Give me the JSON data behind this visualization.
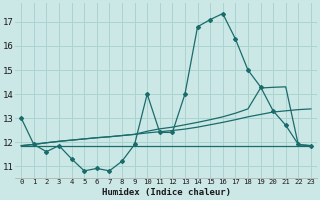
{
  "xlabel": "Humidex (Indice chaleur)",
  "ylabel": "",
  "background_color": "#cce8e6",
  "grid_color": "#aad4d0",
  "line_color": "#1a6b6b",
  "x_values": [
    0,
    1,
    2,
    3,
    4,
    5,
    6,
    7,
    8,
    9,
    10,
    11,
    12,
    13,
    14,
    15,
    16,
    17,
    18,
    19,
    20,
    21,
    22,
    23
  ],
  "series1_y": [
    13.0,
    11.9,
    11.6,
    11.85,
    11.3,
    10.8,
    10.9,
    10.8,
    11.2,
    11.9,
    14.0,
    12.4,
    12.4,
    14.0,
    16.8,
    17.1,
    17.35,
    16.3,
    15.0,
    14.3,
    13.3,
    12.7,
    11.9,
    11.85
  ],
  "series2_y": [
    11.85,
    11.85,
    11.85,
    11.85,
    11.85,
    11.85,
    11.85,
    11.85,
    11.85,
    11.85,
    11.85,
    11.85,
    11.85,
    11.85,
    11.85,
    11.85,
    11.85,
    11.85,
    11.85,
    11.85,
    11.85,
    11.85,
    11.85,
    11.85
  ],
  "series3_y": [
    11.85,
    11.9,
    11.97,
    12.03,
    12.08,
    12.13,
    12.18,
    12.22,
    12.27,
    12.32,
    12.38,
    12.43,
    12.48,
    12.54,
    12.62,
    12.72,
    12.82,
    12.93,
    13.05,
    13.15,
    13.25,
    13.3,
    13.35,
    13.38
  ],
  "series4_y": [
    11.85,
    11.9,
    11.97,
    12.03,
    12.08,
    12.13,
    12.18,
    12.22,
    12.27,
    12.32,
    12.45,
    12.55,
    12.62,
    12.72,
    12.82,
    12.93,
    13.05,
    13.2,
    13.38,
    14.25,
    14.28,
    14.3,
    11.88,
    11.85
  ],
  "ylim": [
    10.5,
    17.8
  ],
  "xlim": [
    -0.5,
    23.5
  ],
  "yticks": [
    11,
    12,
    13,
    14,
    15,
    16,
    17
  ],
  "xticks": [
    0,
    1,
    2,
    3,
    4,
    5,
    6,
    7,
    8,
    9,
    10,
    11,
    12,
    13,
    14,
    15,
    16,
    17,
    18,
    19,
    20,
    21,
    22,
    23
  ]
}
